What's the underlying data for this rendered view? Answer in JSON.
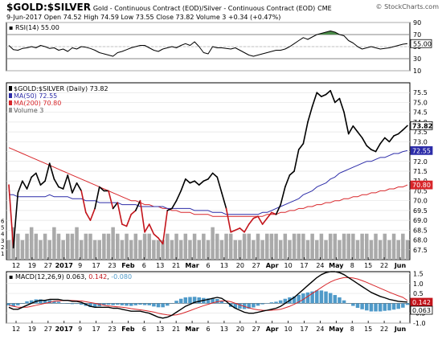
{
  "header": {
    "title": "$GOLD:$SILVER",
    "subtitle": "Gold - Continuous Contract (EOD)/Silver - Continuous Contract (EOD)",
    "exchange": "CME",
    "copyright": "© StockCharts.com",
    "date": "9-Jun-2017",
    "ohlc": [
      {
        "label": "Open",
        "value": "74.52"
      },
      {
        "label": "High",
        "value": "74.59"
      },
      {
        "label": "Low",
        "value": "73.55"
      },
      {
        "label": "Close",
        "value": "73.82"
      },
      {
        "label": "Volume",
        "value": "3"
      },
      {
        "label": "Chg",
        "value": "+0.34 (+0.47%)"
      }
    ]
  },
  "chart_data": [
    {
      "type": "line",
      "panel": "rsi",
      "label": "RSI(14) 55.00",
      "ylim": [
        10,
        90
      ],
      "yticks": [
        10,
        30,
        50,
        70,
        90
      ],
      "reference_lines": [
        30,
        70
      ],
      "current_value": 55.0,
      "series": [
        {
          "values": [
            52,
            45,
            44,
            47,
            48,
            50,
            48,
            52,
            50,
            47,
            48,
            44,
            46,
            42,
            48,
            46,
            50,
            49,
            47,
            44,
            40,
            38,
            36,
            34,
            40,
            42,
            45,
            48,
            50,
            52,
            52,
            48,
            44,
            42,
            46,
            48,
            50,
            48,
            52,
            55,
            52,
            58,
            50,
            40,
            38,
            50,
            48,
            48,
            47,
            46,
            48,
            44,
            40,
            36,
            34,
            36,
            38,
            40,
            42,
            44,
            44,
            46,
            50,
            55,
            60,
            65,
            62,
            66,
            70,
            72,
            74,
            76,
            74,
            70,
            68,
            60,
            56,
            50,
            46,
            48,
            50,
            48,
            46,
            47,
            48,
            50,
            52,
            54,
            55
          ]
        }
      ]
    },
    {
      "type": "line",
      "panel": "price",
      "ylim": [
        67.0,
        76.0
      ],
      "yticks": [
        67.5,
        68.0,
        68.5,
        69.0,
        69.5,
        70.0,
        70.5,
        71.0,
        71.5,
        72.0,
        72.5,
        73.0,
        73.5,
        74.0,
        74.5,
        75.0,
        75.5
      ],
      "legend": [
        {
          "label": "$GOLD:$SILVER (Daily) 73.82",
          "color": "#000000"
        },
        {
          "label": "MA(50) 72.55",
          "color": "#2c2ca8"
        },
        {
          "label": "MA(200) 70.80",
          "color": "#d8262a"
        },
        {
          "label": "Volume 3",
          "color": "#999999"
        }
      ],
      "last_value_tags": [
        {
          "value": "73.82",
          "color": "#000000"
        },
        {
          "value": "72.55",
          "color": "#2c2ca8"
        },
        {
          "value": "70.80",
          "color": "#d8262a"
        }
      ],
      "x_labels": [
        "12",
        "19",
        "27",
        "2017",
        "9",
        "17",
        "23",
        "Feb",
        "6",
        "13",
        "21",
        "Mar",
        "6",
        "13",
        "20",
        "27",
        "Apr",
        "10",
        "17",
        "24",
        "May",
        "8",
        "15",
        "22",
        "Jun"
      ],
      "series": [
        {
          "name": "$GOLD:$SILVER (Daily)",
          "color": "#000000",
          "values": [
            70.8,
            67.6,
            70.4,
            71.0,
            70.6,
            71.2,
            71.4,
            70.8,
            71.0,
            71.9,
            71.1,
            70.7,
            70.6,
            71.3,
            70.4,
            70.9,
            70.5,
            69.4,
            69.0,
            69.6,
            70.7,
            70.5,
            70.5,
            69.6,
            69.9,
            68.8,
            68.7,
            69.3,
            69.5,
            70.0,
            68.4,
            68.8,
            68.3,
            68.1,
            67.8,
            69.5,
            69.6,
            70.0,
            70.5,
            71.1,
            70.9,
            71.0,
            70.8,
            71.0,
            71.1,
            71.4,
            71.2,
            70.4,
            69.6,
            68.4,
            68.5,
            68.6,
            68.4,
            68.8,
            69.1,
            69.2,
            68.8,
            69.1,
            69.4,
            69.3,
            69.8,
            70.7,
            71.3,
            71.5,
            72.6,
            72.9,
            74.0,
            74.8,
            75.5,
            75.3,
            75.4,
            75.6,
            75.0,
            75.2,
            74.5,
            73.4,
            73.8,
            73.5,
            73.2,
            72.8,
            72.6,
            72.5,
            72.9,
            73.2,
            73.0,
            73.3,
            73.4,
            73.6,
            73.82
          ]
        },
        {
          "name": "MA(50)",
          "color": "#2c2ca8",
          "values": [
            70.3,
            70.3,
            70.2,
            70.2,
            70.2,
            70.2,
            70.2,
            70.2,
            70.2,
            70.3,
            70.2,
            70.2,
            70.2,
            70.2,
            70.1,
            70.1,
            70.1,
            70.0,
            70.0,
            70.0,
            69.9,
            69.9,
            69.9,
            69.9,
            69.9,
            69.8,
            69.8,
            69.8,
            69.8,
            69.7,
            69.7,
            69.7,
            69.7,
            69.7,
            69.7,
            69.6,
            69.6,
            69.6,
            69.6,
            69.6,
            69.6,
            69.5,
            69.5,
            69.5,
            69.5,
            69.4,
            69.4,
            69.4,
            69.3,
            69.3,
            69.3,
            69.3,
            69.3,
            69.3,
            69.3,
            69.3,
            69.4,
            69.4,
            69.5,
            69.6,
            69.7,
            69.8,
            69.9,
            70.0,
            70.1,
            70.3,
            70.4,
            70.5,
            70.7,
            70.8,
            70.9,
            71.1,
            71.2,
            71.4,
            71.5,
            71.6,
            71.7,
            71.8,
            71.9,
            72.0,
            72.0,
            72.1,
            72.2,
            72.2,
            72.3,
            72.4,
            72.4,
            72.5,
            72.55
          ]
        },
        {
          "name": "MA(200)",
          "color": "#d8262a",
          "values": [
            72.7,
            72.6,
            72.5,
            72.4,
            72.3,
            72.2,
            72.1,
            72.0,
            71.9,
            71.8,
            71.7,
            71.6,
            71.5,
            71.4,
            71.3,
            71.2,
            71.1,
            71.0,
            70.9,
            70.8,
            70.7,
            70.6,
            70.5,
            70.4,
            70.3,
            70.2,
            70.1,
            70.0,
            70.0,
            69.9,
            69.8,
            69.8,
            69.7,
            69.7,
            69.6,
            69.6,
            69.5,
            69.5,
            69.4,
            69.4,
            69.4,
            69.3,
            69.3,
            69.3,
            69.3,
            69.2,
            69.2,
            69.2,
            69.2,
            69.2,
            69.2,
            69.2,
            69.2,
            69.2,
            69.2,
            69.2,
            69.2,
            69.3,
            69.3,
            69.3,
            69.4,
            69.4,
            69.5,
            69.5,
            69.6,
            69.6,
            69.7,
            69.7,
            69.8,
            69.8,
            69.9,
            69.9,
            70.0,
            70.0,
            70.1,
            70.1,
            70.2,
            70.2,
            70.3,
            70.3,
            70.4,
            70.4,
            70.5,
            70.5,
            70.6,
            70.6,
            70.7,
            70.7,
            70.8
          ]
        },
        {
          "name": "Volume",
          "color": "#999999",
          "type": "bar",
          "values": [
            3,
            5,
            4,
            3,
            4,
            5,
            4,
            3,
            4,
            3,
            5,
            4,
            3,
            4,
            4,
            5,
            3,
            4,
            4,
            3,
            3,
            4,
            4,
            5,
            4,
            3,
            4,
            3,
            4,
            3,
            4,
            4,
            3,
            3,
            3,
            4,
            3,
            4,
            3,
            4,
            3,
            4,
            3,
            4,
            3,
            5,
            4,
            3,
            4,
            4,
            3,
            3,
            4,
            4,
            3,
            4,
            3,
            4,
            4,
            4,
            3,
            4,
            3,
            4,
            4,
            4,
            3,
            4,
            3,
            4,
            3,
            4,
            4,
            3,
            4,
            4,
            4,
            3,
            4,
            4,
            3,
            4,
            3,
            4,
            3,
            4,
            3,
            4,
            3
          ]
        }
      ],
      "volume_yticks": [
        1,
        2,
        3,
        4,
        5,
        6
      ]
    },
    {
      "type": "line",
      "panel": "macd",
      "label_prefix": "MACD(12,26,9) ",
      "label_values": [
        "0.063",
        ", ",
        "0.142",
        ", ",
        "-0.080"
      ],
      "ylim": [
        -1.0,
        1.6
      ],
      "yticks": [
        -1.0,
        -0.5,
        0.0,
        0.5,
        1.0,
        1.5
      ],
      "last_value_tags": [
        "0.142",
        "0.063"
      ],
      "series": [
        {
          "name": "MACD",
          "color": "#000000",
          "values": [
            -0.2,
            -0.3,
            -0.3,
            -0.2,
            -0.1,
            0.0,
            0.1,
            0.15,
            0.15,
            0.2,
            0.2,
            0.2,
            0.15,
            0.15,
            0.1,
            0.1,
            0.05,
            -0.05,
            -0.15,
            -0.2,
            -0.2,
            -0.2,
            -0.2,
            -0.25,
            -0.25,
            -0.3,
            -0.35,
            -0.4,
            -0.4,
            -0.4,
            -0.45,
            -0.5,
            -0.6,
            -0.7,
            -0.75,
            -0.7,
            -0.6,
            -0.45,
            -0.3,
            -0.15,
            -0.05,
            0.05,
            0.1,
            0.15,
            0.2,
            0.25,
            0.3,
            0.25,
            0.1,
            -0.1,
            -0.25,
            -0.35,
            -0.45,
            -0.5,
            -0.5,
            -0.45,
            -0.4,
            -0.35,
            -0.3,
            -0.25,
            -0.15,
            0.0,
            0.15,
            0.3,
            0.5,
            0.7,
            0.9,
            1.1,
            1.3,
            1.45,
            1.55,
            1.6,
            1.6,
            1.55,
            1.45,
            1.3,
            1.15,
            1.0,
            0.85,
            0.7,
            0.55,
            0.45,
            0.35,
            0.28,
            0.2,
            0.15,
            0.1,
            0.08,
            0.063
          ]
        },
        {
          "name": "Signal",
          "color": "#d8262a",
          "values": [
            -0.1,
            -0.15,
            -0.2,
            -0.2,
            -0.2,
            -0.15,
            -0.1,
            -0.05,
            0.0,
            0.05,
            0.1,
            0.12,
            0.14,
            0.15,
            0.14,
            0.13,
            0.12,
            0.08,
            0.04,
            0.0,
            -0.05,
            -0.1,
            -0.13,
            -0.16,
            -0.18,
            -0.2,
            -0.23,
            -0.27,
            -0.3,
            -0.33,
            -0.36,
            -0.4,
            -0.44,
            -0.5,
            -0.55,
            -0.58,
            -0.6,
            -0.58,
            -0.53,
            -0.45,
            -0.37,
            -0.28,
            -0.2,
            -0.12,
            -0.05,
            0.02,
            0.08,
            0.12,
            0.12,
            0.08,
            0.0,
            -0.08,
            -0.16,
            -0.23,
            -0.29,
            -0.33,
            -0.35,
            -0.36,
            -0.35,
            -0.33,
            -0.3,
            -0.23,
            -0.15,
            -0.05,
            0.07,
            0.2,
            0.35,
            0.5,
            0.65,
            0.8,
            0.95,
            1.08,
            1.18,
            1.25,
            1.3,
            1.3,
            1.28,
            1.23,
            1.15,
            1.06,
            0.96,
            0.86,
            0.76,
            0.66,
            0.56,
            0.47,
            0.38,
            0.3,
            0.142
          ]
        }
      ]
    }
  ]
}
